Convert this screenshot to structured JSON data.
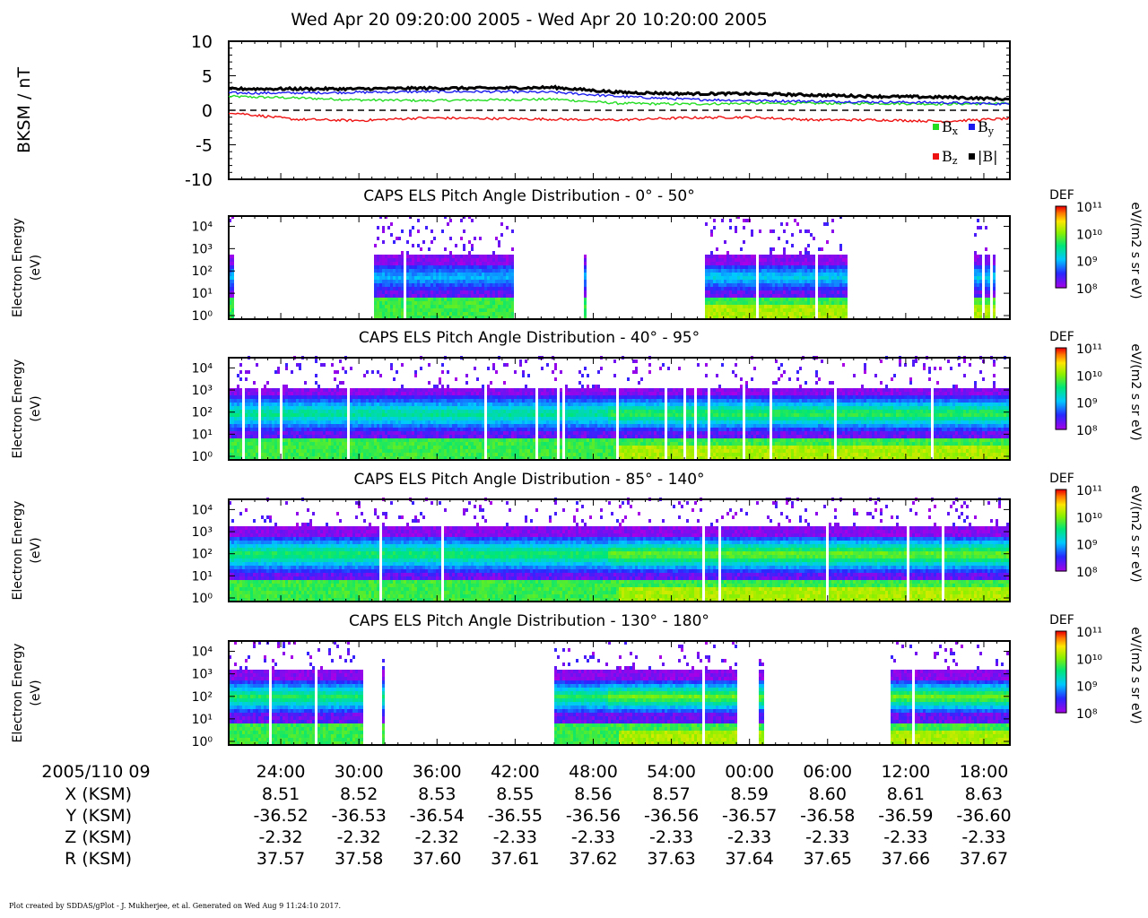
{
  "title": "Wed Apr 20 09:20:00 2005 - Wed Apr 20 10:20:00 2005",
  "footer": "Plot created by SDDAS/gPlot - J. Mukherjee, et al.  Generated on Wed Aug 9 11:24:10 2017.",
  "colors": {
    "bx": "#22dd22",
    "by": "#1a1aee",
    "bz": "#ee1111",
    "bmag": "#000000"
  },
  "chart_data": [
    {
      "type": "line",
      "ylabel": "BKSM / nT",
      "ylim": [
        -10,
        10
      ],
      "yticks": [
        "10",
        "5",
        "0",
        "-5",
        "-10"
      ],
      "zero_line": "dashed",
      "x_minutes": [
        0,
        5,
        10,
        15,
        20,
        25,
        30,
        35,
        40,
        45,
        50,
        55,
        60
      ],
      "series": [
        {
          "name": "Bx",
          "values": [
            2.0,
            1.8,
            1.5,
            1.4,
            1.5,
            1.6,
            1.0,
            0.9,
            1.0,
            1.0,
            1.0,
            0.9,
            1.0
          ]
        },
        {
          "name": "By",
          "values": [
            2.5,
            2.5,
            2.6,
            2.7,
            2.7,
            2.6,
            2.0,
            1.6,
            1.4,
            1.3,
            1.2,
            1.1,
            0.9
          ]
        },
        {
          "name": "Bz",
          "values": [
            -0.3,
            -1.3,
            -1.5,
            -1.1,
            -1.2,
            -1.3,
            -1.4,
            -1.1,
            -1.0,
            -1.4,
            -1.4,
            -1.6,
            -1.2
          ]
        },
        {
          "name": "|B|",
          "values": [
            3.1,
            3.1,
            3.1,
            3.2,
            3.2,
            3.3,
            2.6,
            2.4,
            2.4,
            2.2,
            2.0,
            1.9,
            1.6
          ]
        }
      ],
      "legend": [
        "Bx",
        "By",
        "Bz",
        "|B|"
      ]
    },
    {
      "type": "heatmap",
      "title": "CAPS ELS Pitch Angle Distribution - 0° - 50°",
      "ylabel": "Electron Energy",
      "yunit": "(eV)",
      "ylog": true,
      "colorbar": {
        "label": "DEF",
        "unit": "eV/(m2 s sr eV)",
        "range_log10": [
          8,
          11
        ]
      },
      "coverage_minutes": [
        [
          0,
          0.3
        ],
        [
          11,
          21.8
        ],
        [
          27.2,
          27.4
        ],
        [
          36.5,
          47.5
        ],
        [
          57.3,
          57.8
        ],
        [
          58.1,
          58.8
        ]
      ],
      "band_log10_energy": [
        1.2,
        2.4
      ],
      "peak_log10_def": 9.0
    },
    {
      "type": "heatmap",
      "title": "CAPS ELS Pitch Angle Distribution - 40° - 95°",
      "ylabel": "Electron Energy",
      "yunit": "(eV)",
      "ylog": true,
      "colorbar": {
        "label": "DEF",
        "unit": "eV/(m2 s sr eV)",
        "range_log10": [
          8,
          11
        ]
      },
      "coverage_minutes": [
        [
          0,
          60
        ]
      ],
      "band_log10_energy": [
        1.2,
        2.8
      ],
      "peak_log10_def": 9.6
    },
    {
      "type": "heatmap",
      "title": "CAPS ELS Pitch Angle Distribution - 85° - 140°",
      "ylabel": "Electron Energy",
      "yunit": "(eV)",
      "ylog": true,
      "colorbar": {
        "label": "DEF",
        "unit": "eV/(m2 s sr eV)",
        "range_log10": [
          8,
          11
        ]
      },
      "coverage_minutes": [
        [
          0,
          60
        ]
      ],
      "band_log10_energy": [
        1.2,
        2.9
      ],
      "peak_log10_def": 9.8
    },
    {
      "type": "heatmap",
      "title": "CAPS ELS Pitch Angle Distribution - 130° - 180°",
      "ylabel": "Electron Energy",
      "yunit": "(eV)",
      "ylog": true,
      "colorbar": {
        "label": "DEF",
        "unit": "eV/(m2 s sr eV)",
        "range_log10": [
          8,
          11
        ]
      },
      "coverage_minutes": [
        [
          0,
          10.2
        ],
        [
          11.6,
          11.8
        ],
        [
          24.9,
          39
        ],
        [
          40.7,
          41
        ],
        [
          50.7,
          60
        ]
      ],
      "band_log10_energy": [
        1.3,
        2.8
      ],
      "peak_log10_def": 9.8
    }
  ],
  "heatmap_ticks": [
    "10⁴",
    "10³",
    "10²",
    "10¹",
    "10⁰"
  ],
  "colorbar_ticks": [
    "10¹¹",
    "10¹⁰",
    "10⁹",
    "10⁸"
  ],
  "time_axis": {
    "start_label": "2005/110 09",
    "ticks": [
      "24:00",
      "30:00",
      "36:00",
      "42:00",
      "48:00",
      "54:00",
      "00:00",
      "06:00",
      "12:00",
      "18:00"
    ],
    "rows": [
      {
        "label": "X (KSM)",
        "values": [
          "8.51",
          "8.52",
          "8.53",
          "8.55",
          "8.56",
          "8.57",
          "8.59",
          "8.60",
          "8.61",
          "8.63"
        ]
      },
      {
        "label": "Y (KSM)",
        "values": [
          "-36.52",
          "-36.53",
          "-36.54",
          "-36.55",
          "-36.56",
          "-36.56",
          "-36.57",
          "-36.58",
          "-36.59",
          "-36.60"
        ]
      },
      {
        "label": "Z (KSM)",
        "values": [
          "-2.32",
          "-2.32",
          "-2.32",
          "-2.33",
          "-2.33",
          "-2.33",
          "-2.33",
          "-2.33",
          "-2.33",
          "-2.33"
        ]
      },
      {
        "label": "R (KSM)",
        "values": [
          "37.57",
          "37.58",
          "37.60",
          "37.61",
          "37.62",
          "37.63",
          "37.64",
          "37.65",
          "37.66",
          "37.67"
        ]
      }
    ]
  }
}
